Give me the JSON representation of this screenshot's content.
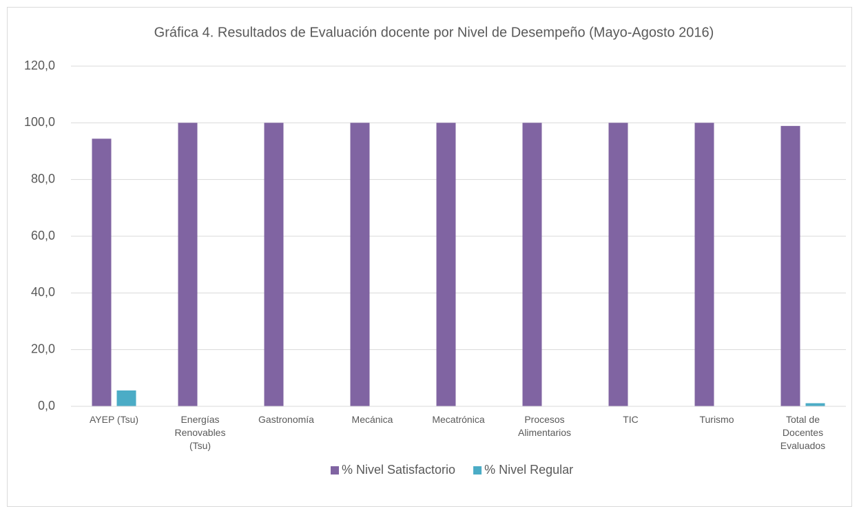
{
  "chart_data": {
    "type": "bar",
    "title": "Gráfica 4. Resultados de Evaluación docente por Nivel de Desempeño (Mayo-Agosto 2016)",
    "categories": [
      "AYEP (Tsu)",
      "Energías Renovables (Tsu)",
      "Gastronomía",
      "Mecánica",
      "Mecatrónica",
      "Procesos Alimentarios",
      "TIC",
      "Turismo",
      "Total de Docentes Evaluados"
    ],
    "series": [
      {
        "name": "% Nivel Satisfactorio",
        "color": "#8064a2",
        "values": [
          94.4,
          100,
          100,
          100,
          100,
          100,
          100,
          100,
          98.9
        ]
      },
      {
        "name": "% Nivel Regular",
        "color": "#4bacc6",
        "values": [
          5.6,
          0,
          0,
          0,
          0,
          0,
          0,
          0,
          1.1
        ]
      }
    ],
    "ylim": [
      0,
      120
    ],
    "yticks": [
      {
        "value": 0,
        "label": "0,0"
      },
      {
        "value": 20,
        "label": "20,0"
      },
      {
        "value": 40,
        "label": "40,0"
      },
      {
        "value": 60,
        "label": "60,0"
      },
      {
        "value": 80,
        "label": "80,0"
      },
      {
        "value": 100,
        "label": "100,0"
      },
      {
        "value": 120,
        "label": "120,0"
      }
    ],
    "grid": true,
    "legend": "bottom"
  }
}
